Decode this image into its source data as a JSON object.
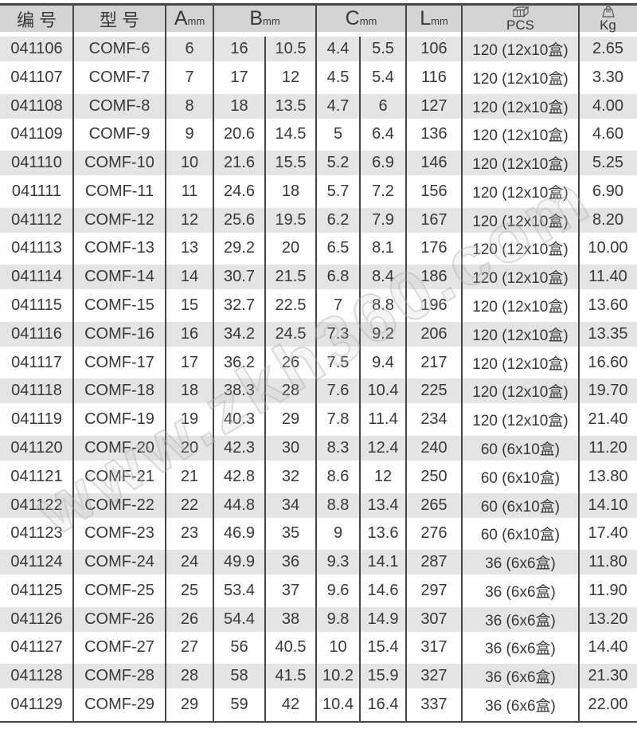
{
  "watermark_text": "www.zkh360.com",
  "colors": {
    "header_bg": "#d4d4d4",
    "stripe_bg": "#e4e4e4",
    "grid_line": "#464646",
    "text": "#383838"
  },
  "header": {
    "code": "编 号",
    "model": "型 号",
    "a": {
      "letter": "A",
      "unit": "mm"
    },
    "b": {
      "letter": "B",
      "unit": "mm"
    },
    "c": {
      "letter": "C",
      "unit": "mm"
    },
    "l": {
      "letter": "L",
      "unit": "mm"
    },
    "pcs": {
      "icon": "carton-box-icon",
      "label": "PCS"
    },
    "kg": {
      "icon": "weight-icon",
      "label": "Kg"
    }
  },
  "columns": [
    "code",
    "model",
    "a_mm",
    "b_mm_1",
    "b_mm_2",
    "c_mm_1",
    "c_mm_2",
    "l_mm",
    "pcs",
    "kg"
  ],
  "rows": [
    [
      "041106",
      "COMF-6",
      "6",
      "16",
      "10.5",
      "4.4",
      "5.5",
      "106",
      "120 (12x10盒)",
      "2.65"
    ],
    [
      "041107",
      "COMF-7",
      "7",
      "17",
      "12",
      "4.5",
      "5.4",
      "116",
      "120 (12x10盒)",
      "3.30"
    ],
    [
      "041108",
      "COMF-8",
      "8",
      "18",
      "13.5",
      "4.7",
      "6",
      "127",
      "120 (12x10盒)",
      "4.00"
    ],
    [
      "041109",
      "COMF-9",
      "9",
      "20.6",
      "14.5",
      "5",
      "6.4",
      "136",
      "120 (12x10盒)",
      "4.60"
    ],
    [
      "041110",
      "COMF-10",
      "10",
      "21.6",
      "15.5",
      "5.2",
      "6.9",
      "146",
      "120 (12x10盒)",
      "5.25"
    ],
    [
      "041111",
      "COMF-11",
      "11",
      "24.6",
      "18",
      "5.7",
      "7.2",
      "156",
      "120 (12x10盒)",
      "6.90"
    ],
    [
      "041112",
      "COMF-12",
      "12",
      "25.6",
      "19.5",
      "6.2",
      "7.9",
      "167",
      "120 (12x10盒)",
      "8.20"
    ],
    [
      "041113",
      "COMF-13",
      "13",
      "29.2",
      "20",
      "6.5",
      "8.1",
      "176",
      "120 (12x10盒)",
      "10.00"
    ],
    [
      "041114",
      "COMF-14",
      "14",
      "30.7",
      "21.5",
      "6.8",
      "8.4",
      "186",
      "120 (12x10盒)",
      "11.40"
    ],
    [
      "041115",
      "COMF-15",
      "15",
      "32.7",
      "22.5",
      "7",
      "8.8",
      "196",
      "120 (12x10盒)",
      "13.60"
    ],
    [
      "041116",
      "COMF-16",
      "16",
      "34.2",
      "24.5",
      "7.3",
      "9.2",
      "206",
      "120 (12x10盒)",
      "13.35"
    ],
    [
      "041117",
      "COMF-17",
      "17",
      "36.2",
      "26",
      "7.5",
      "9.4",
      "217",
      "120 (12x10盒)",
      "16.60"
    ],
    [
      "041118",
      "COMF-18",
      "18",
      "38.3",
      "28",
      "7.6",
      "10.4",
      "225",
      "120 (12x10盒)",
      "19.70"
    ],
    [
      "041119",
      "COMF-19",
      "19",
      "40.3",
      "29",
      "7.8",
      "11.4",
      "234",
      "120 (12x10盒)",
      "21.40"
    ],
    [
      "041120",
      "COMF-20",
      "20",
      "42.3",
      "30",
      "8.3",
      "12.4",
      "240",
      "60 (6x10盒)",
      "11.20"
    ],
    [
      "041121",
      "COMF-21",
      "21",
      "42.8",
      "32",
      "8.6",
      "12",
      "250",
      "60 (6x10盒)",
      "13.80"
    ],
    [
      "041122",
      "COMF-22",
      "22",
      "44.8",
      "34",
      "8.8",
      "13.4",
      "265",
      "60 (6x10盒)",
      "14.10"
    ],
    [
      "041123",
      "COMF-23",
      "23",
      "46.9",
      "35",
      "9",
      "13.6",
      "276",
      "60 (6x10盒)",
      "17.40"
    ],
    [
      "041124",
      "COMF-24",
      "24",
      "49.9",
      "36",
      "9.3",
      "14.1",
      "287",
      "36 (6x6盒)",
      "11.80"
    ],
    [
      "041125",
      "COMF-25",
      "25",
      "53.4",
      "37",
      "9.6",
      "14.6",
      "297",
      "36 (6x6盒)",
      "11.90"
    ],
    [
      "041126",
      "COMF-26",
      "26",
      "54.4",
      "38",
      "9.8",
      "14.9",
      "307",
      "36 (6x6盒)",
      "13.20"
    ],
    [
      "041127",
      "COMF-27",
      "27",
      "56",
      "40.5",
      "10",
      "15.4",
      "317",
      "36 (6x6盒)",
      "14.40"
    ],
    [
      "041128",
      "COMF-28",
      "28",
      "58",
      "41.5",
      "10.2",
      "15.9",
      "327",
      "36 (6x6盒)",
      "21.30"
    ],
    [
      "041129",
      "COMF-29",
      "29",
      "59",
      "42",
      "10.4",
      "16.4",
      "337",
      "36 (6x6盒)",
      "22.00"
    ]
  ]
}
